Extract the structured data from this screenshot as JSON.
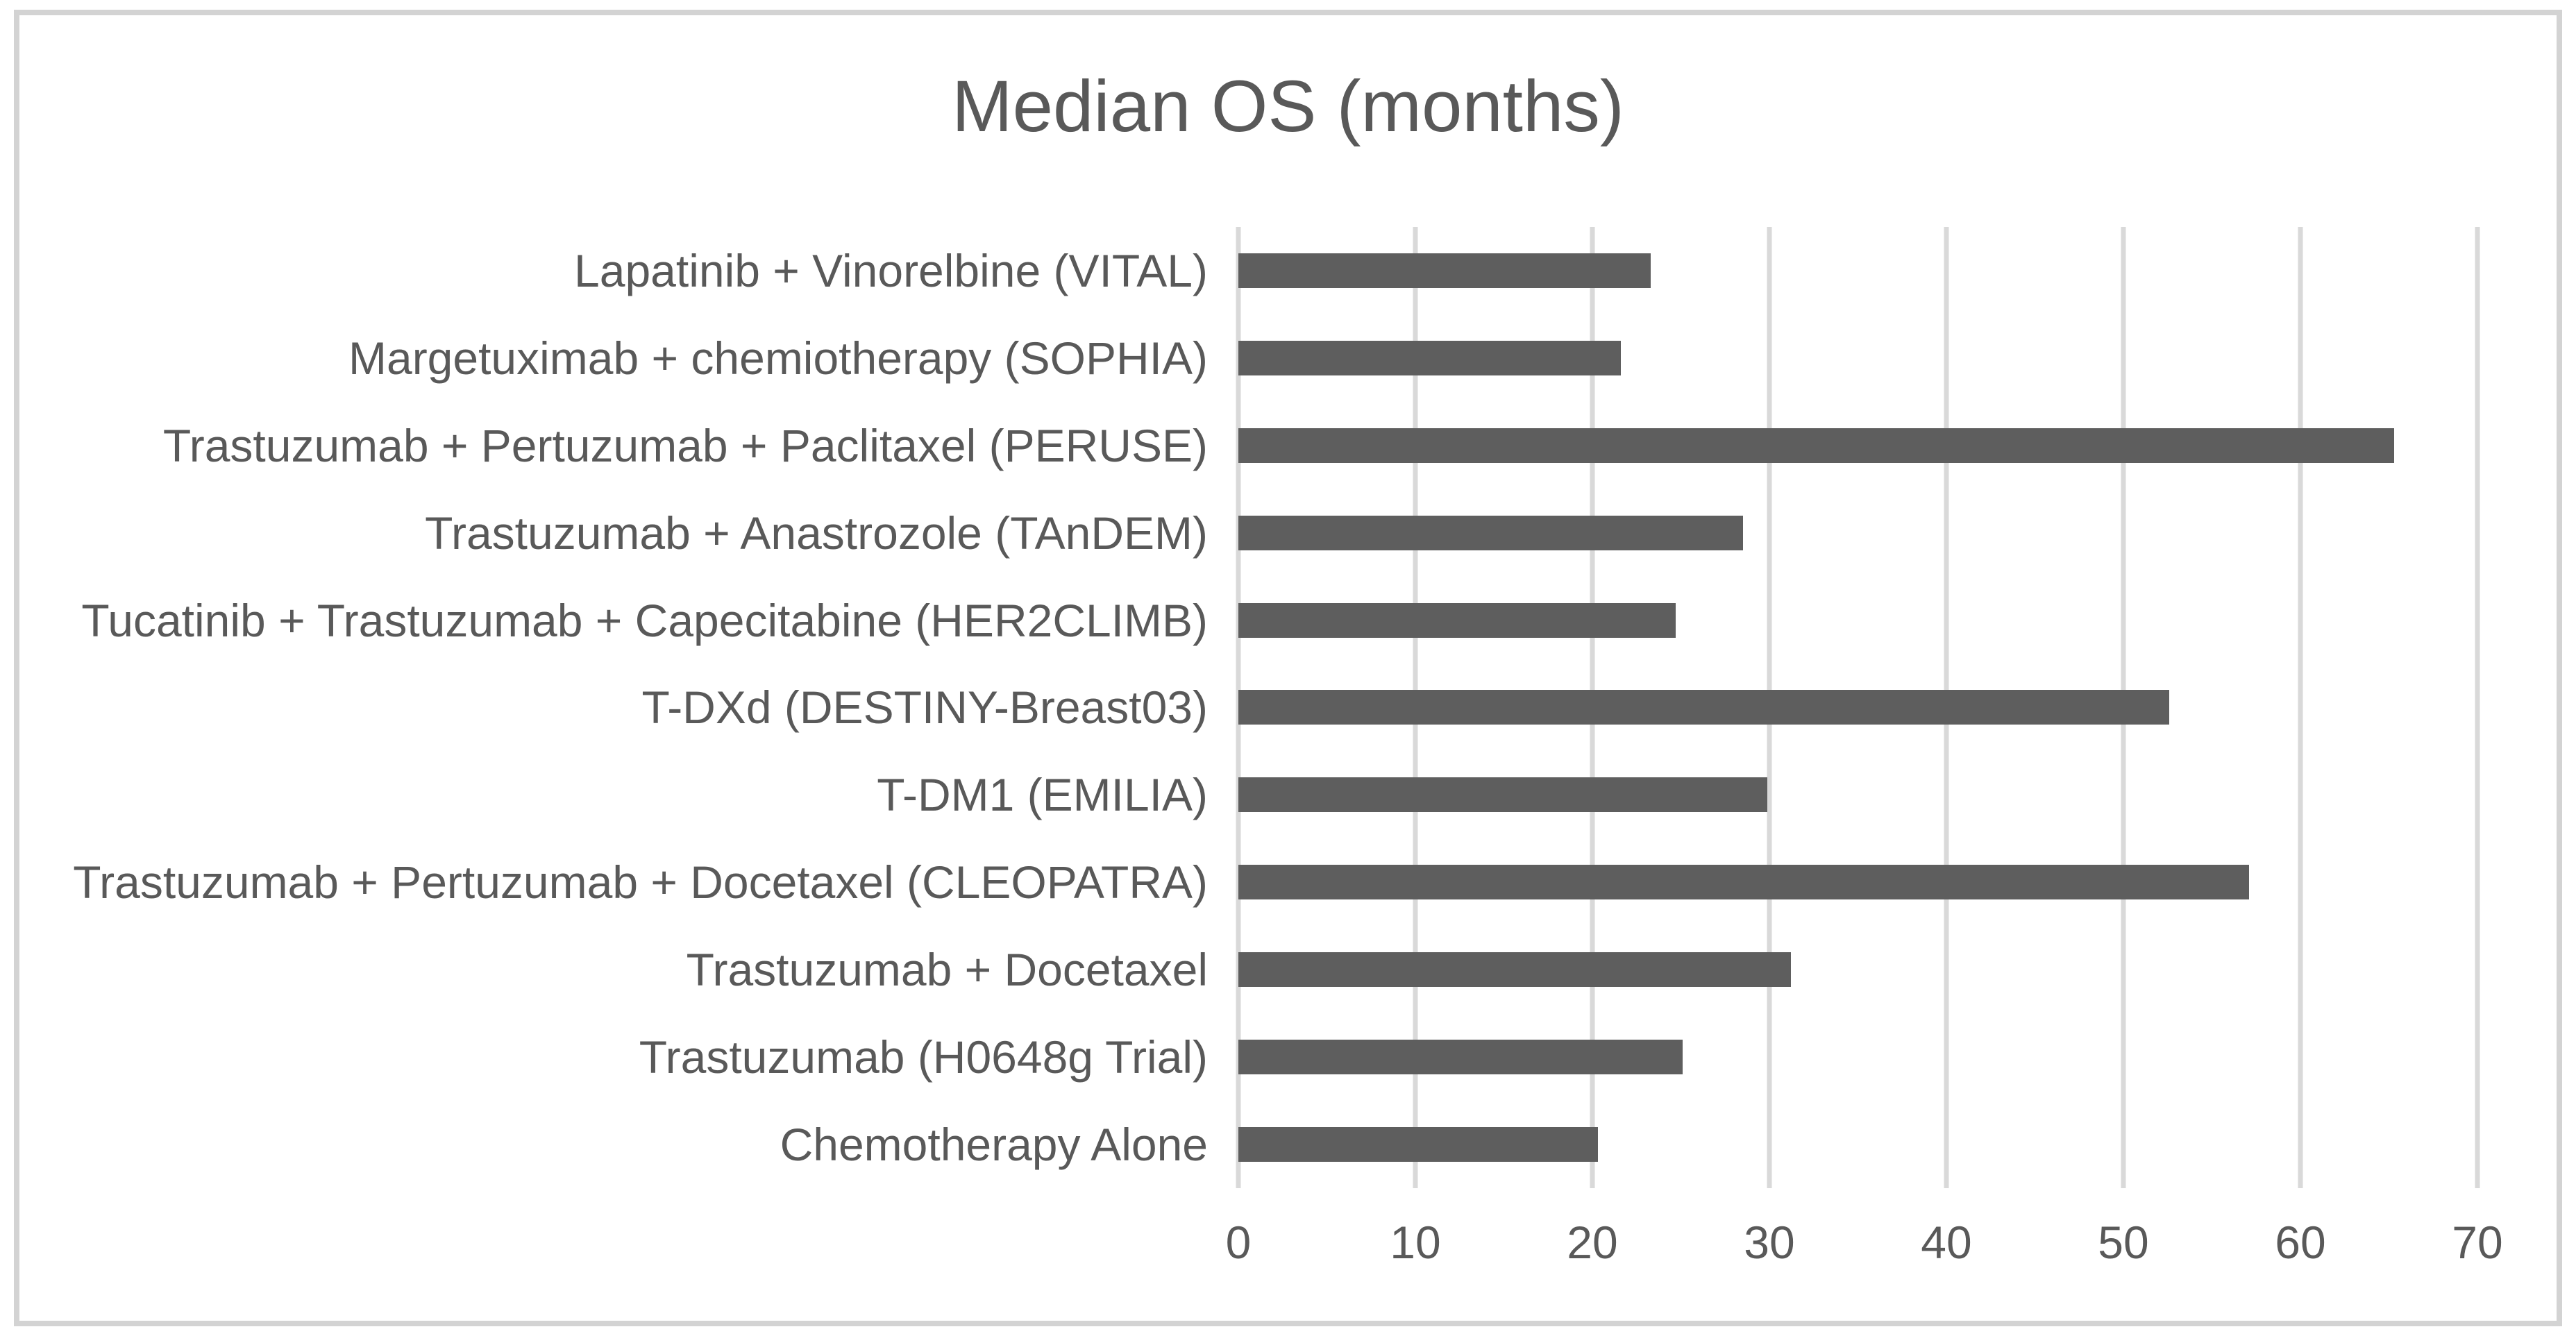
{
  "frame": {
    "background": "#ffffff",
    "border_color": "#d3d3d3"
  },
  "chart_data": {
    "type": "bar",
    "orientation": "horizontal",
    "title": "Median OS (months)",
    "categories": [
      "Lapatinib + Vinorelbine (VITAL)",
      "Margetuximab  + chemiotherapy (SOPHIA)",
      "Trastuzumab + Pertuzumab + Paclitaxel (PERUSE)",
      "Trastuzumab + Anastrozole (TAnDEM)",
      "Tucatinib + Trastuzumab + Capecitabine (HER2CLIMB)",
      "T-DXd (DESTINY-Breast03)",
      "T-DM1 (EMILIA)",
      "Trastuzumab + Pertuzumab + Docetaxel (CLEOPATRA)",
      "Trastuzumab + Docetaxel",
      "Trastuzumab (H0648g Trial)",
      "Chemotherapy Alone"
    ],
    "values": [
      23.3,
      21.6,
      65.3,
      28.5,
      24.7,
      52.6,
      29.9,
      57.1,
      31.2,
      25.1,
      20.3
    ],
    "xlabel": "",
    "ylabel": "",
    "xlim": [
      0,
      70
    ],
    "x_ticks": [
      0,
      10,
      20,
      30,
      40,
      50,
      60,
      70
    ],
    "grid": true,
    "legend": "none",
    "bar_color": "#5e5e5e",
    "gridline_color": "#d9d9d9",
    "text_color": "#595959"
  }
}
